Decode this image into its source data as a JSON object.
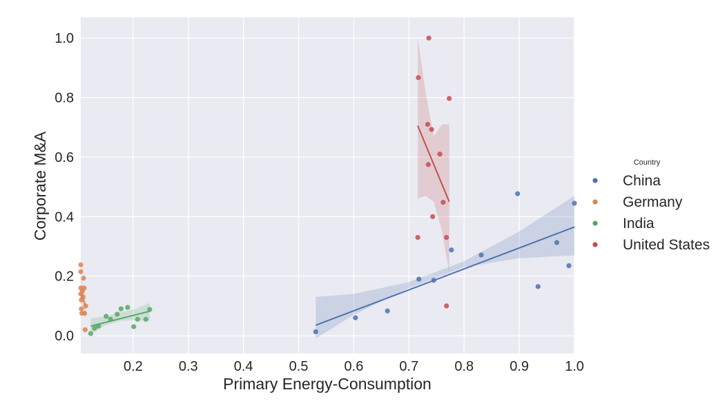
{
  "chart_data": {
    "type": "scatter",
    "title": "",
    "xlabel": "Primary Energy-Consumption",
    "ylabel": "Corporate M&A",
    "xlim": [
      0.105,
      1.0
    ],
    "ylim": [
      -0.06,
      1.07
    ],
    "xticks": [
      "0.2",
      "0.3",
      "0.4",
      "0.5",
      "0.6",
      "0.7",
      "0.8",
      "0.9",
      "1.0"
    ],
    "yticks": [
      "0.0",
      "0.2",
      "0.4",
      "0.6",
      "0.8",
      "1.0"
    ],
    "grid": true,
    "background": "#eaeaf2",
    "legend": {
      "title": "Country",
      "position": "right"
    },
    "series": [
      {
        "name": "China",
        "color": "#4c72b0",
        "points": [
          [
            0.531,
            0.013
          ],
          [
            0.603,
            0.06
          ],
          [
            0.661,
            0.083
          ],
          [
            0.718,
            0.19
          ],
          [
            0.745,
            0.186
          ],
          [
            0.777,
            0.288
          ],
          [
            0.831,
            0.271
          ],
          [
            0.897,
            0.477
          ],
          [
            0.934,
            0.165
          ],
          [
            0.968,
            0.313
          ],
          [
            0.99,
            0.235
          ],
          [
            1.0,
            0.445
          ]
        ],
        "fit": {
          "x": [
            0.531,
            1.0
          ],
          "y": [
            0.035,
            0.365
          ]
        },
        "ci": {
          "x": [
            0.531,
            0.6,
            0.7,
            0.8,
            0.9,
            1.0
          ],
          "lower": [
            -0.01,
            0.07,
            0.16,
            0.23,
            0.26,
            0.27
          ],
          "upper": [
            0.13,
            0.14,
            0.18,
            0.25,
            0.35,
            0.47
          ]
        }
      },
      {
        "name": "Germany",
        "color": "#dd8452",
        "points": [
          [
            0.105,
            0.238
          ],
          [
            0.105,
            0.215
          ],
          [
            0.105,
            0.16
          ],
          [
            0.105,
            0.14
          ],
          [
            0.106,
            0.12
          ],
          [
            0.106,
            0.09
          ],
          [
            0.107,
            0.075
          ],
          [
            0.108,
            0.15
          ],
          [
            0.109,
            0.13
          ],
          [
            0.11,
            0.193
          ],
          [
            0.111,
            0.16
          ],
          [
            0.112,
            0.075
          ],
          [
            0.113,
            0.02
          ],
          [
            0.114,
            0.1
          ]
        ],
        "fit": {
          "x": [
            0.105,
            0.114
          ],
          "y": [
            0.15,
            0.095
          ]
        },
        "ci": {
          "x": [
            0.105,
            0.108,
            0.111,
            0.114
          ],
          "lower": [
            0.11,
            0.1,
            0.08,
            0.06
          ],
          "upper": [
            0.19,
            0.17,
            0.15,
            0.13
          ]
        }
      },
      {
        "name": "India",
        "color": "#55a868",
        "points": [
          [
            0.123,
            0.007
          ],
          [
            0.13,
            0.025
          ],
          [
            0.137,
            0.032
          ],
          [
            0.151,
            0.065
          ],
          [
            0.159,
            0.055
          ],
          [
            0.171,
            0.072
          ],
          [
            0.178,
            0.09
          ],
          [
            0.19,
            0.095
          ],
          [
            0.201,
            0.03
          ],
          [
            0.208,
            0.055
          ],
          [
            0.223,
            0.055
          ],
          [
            0.23,
            0.088
          ]
        ],
        "fit": {
          "x": [
            0.123,
            0.23
          ],
          "y": [
            0.032,
            0.082
          ]
        },
        "ci": {
          "x": [
            0.123,
            0.15,
            0.177,
            0.204,
            0.23
          ],
          "lower": [
            0.005,
            0.035,
            0.05,
            0.052,
            0.05
          ],
          "upper": [
            0.058,
            0.065,
            0.078,
            0.09,
            0.11
          ]
        }
      },
      {
        "name": "United States",
        "color": "#c44e52",
        "points": [
          [
            0.716,
            0.33
          ],
          [
            0.717,
            0.867
          ],
          [
            0.734,
            0.71
          ],
          [
            0.735,
            0.575
          ],
          [
            0.736,
            1.0
          ],
          [
            0.741,
            0.693
          ],
          [
            0.743,
            0.4
          ],
          [
            0.756,
            0.61
          ],
          [
            0.762,
            0.448
          ],
          [
            0.768,
            0.33
          ],
          [
            0.768,
            0.1
          ],
          [
            0.773,
            0.797
          ]
        ],
        "fit": {
          "x": [
            0.716,
            0.773
          ],
          "y": [
            0.705,
            0.45
          ]
        },
        "ci": {
          "x": [
            0.716,
            0.73,
            0.745,
            0.76,
            0.773
          ],
          "lower": [
            0.46,
            0.47,
            0.45,
            0.35,
            0.21
          ],
          "upper": [
            1.0,
            0.82,
            0.67,
            0.71,
            0.71
          ]
        }
      }
    ]
  }
}
